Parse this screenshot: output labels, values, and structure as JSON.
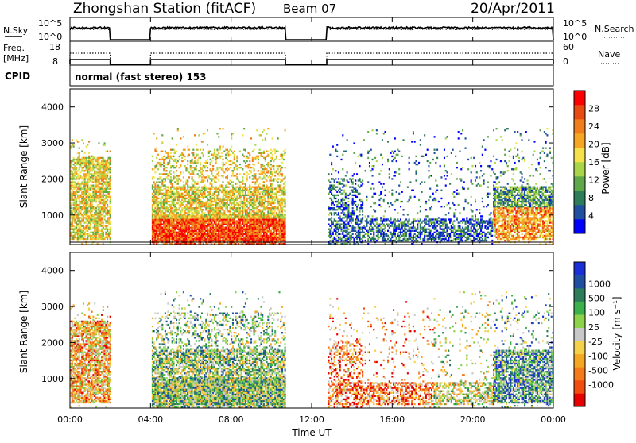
{
  "header": {
    "station": "Zhongshan Station (fitACF)",
    "beam": "Beam 07",
    "date": "20/Apr/2011"
  },
  "panels": {
    "nsky": {
      "label": "N.Sky",
      "ticks": [
        "10^5",
        "10^0"
      ],
      "right_label": "N.Search",
      "right_ticks": [
        "10^5",
        "10^0"
      ]
    },
    "freq": {
      "label_line1": "Freq.",
      "label_line2": "[MHz]",
      "ticks": [
        "18",
        "8"
      ],
      "right_label": "Nave",
      "right_ticks": [
        "60",
        "0"
      ]
    },
    "cpid": {
      "label": "CPID",
      "text": "normal (fast stereo) 153"
    }
  },
  "colors": {
    "power_scale": [
      "#0000ff",
      "#1e4fa0",
      "#2d7d5a",
      "#5ea84a",
      "#a8d648",
      "#f5e24a",
      "#f5a623",
      "#f07e1c",
      "#e84a12",
      "#ff0000"
    ],
    "velocity_scale": [
      "#e60000",
      "#f24d0f",
      "#f57a1a",
      "#f5a623",
      "#f5d04a",
      "#c8c8c8",
      "#8cd24a",
      "#3cb04a",
      "#2d7d5a",
      "#1e4fa0",
      "#1a2fd8"
    ]
  },
  "chart_data": [
    {
      "type": "heatmap",
      "title": "Power",
      "ylabel": "Slant Range [km]",
      "xlabel": "Time UT",
      "x_ticks": [
        "00:00",
        "04:00",
        "08:00",
        "12:00",
        "16:00",
        "20:00",
        "00:00"
      ],
      "y_ticks": [
        1000,
        2000,
        3000,
        4000
      ],
      "ylim": [
        180,
        4500
      ],
      "xlim_hours": [
        0,
        24
      ],
      "colorbar": {
        "label": "Power [dB]",
        "ticks": [
          4,
          8,
          12,
          16,
          20,
          24,
          28
        ],
        "range": [
          0,
          32
        ]
      },
      "data_gaps_hours": [
        [
          2.0,
          4.0
        ],
        [
          10.7,
          12.75
        ]
      ]
    },
    {
      "type": "heatmap",
      "title": "Velocity",
      "ylabel": "Slant Range [km]",
      "xlabel": "Time UT",
      "x_ticks": [
        "00:00",
        "04:00",
        "08:00",
        "12:00",
        "16:00",
        "20:00",
        "00:00"
      ],
      "y_ticks": [
        1000,
        2000,
        3000,
        4000
      ],
      "ylim": [
        180,
        4500
      ],
      "xlim_hours": [
        0,
        24
      ],
      "colorbar": {
        "label": "Velocity [m s⁻¹]",
        "ticks": [
          -1000,
          -500,
          -100,
          -25,
          25,
          100,
          500,
          1000
        ]
      },
      "data_gaps_hours": [
        [
          2.0,
          4.0
        ],
        [
          10.7,
          12.75
        ]
      ]
    }
  ],
  "x_axis": {
    "label": "Time UT",
    "ticks": [
      "00:00",
      "04:00",
      "08:00",
      "12:00",
      "16:00",
      "20:00",
      "00:00"
    ]
  }
}
